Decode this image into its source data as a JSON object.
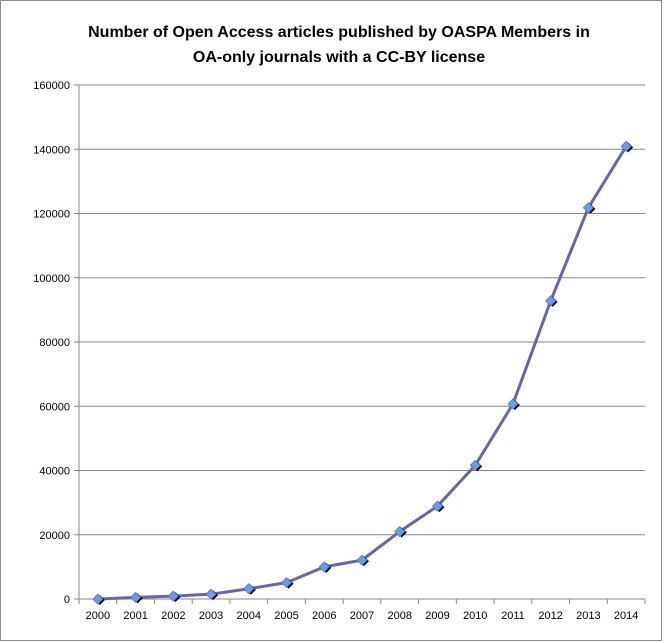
{
  "chart_data": {
    "type": "line",
    "title": "Number of Open Access articles published by OASPA Members in OA-only journals with a CC-BY license",
    "title_lines": [
      "Number of Open Access articles published by OASPA Members in",
      "OA-only journals with a CC-BY license"
    ],
    "xlabel": "",
    "ylabel": "",
    "categories": [
      "2000",
      "2001",
      "2002",
      "2003",
      "2004",
      "2005",
      "2006",
      "2007",
      "2008",
      "2009",
      "2010",
      "2011",
      "2012",
      "2013",
      "2014"
    ],
    "series": [
      {
        "values": [
          0,
          500,
          900,
          1500,
          3200,
          5100,
          10000,
          12100,
          21000,
          28900,
          41600,
          60700,
          92800,
          121800,
          140900
        ],
        "color": "#6666a8",
        "marker_color": "#6f9be6",
        "marker": "diamond"
      }
    ],
    "ylim": [
      0,
      160000
    ],
    "yticks": [
      0,
      20000,
      40000,
      60000,
      80000,
      100000,
      120000,
      140000,
      160000
    ],
    "grid": true,
    "legend": "none"
  }
}
